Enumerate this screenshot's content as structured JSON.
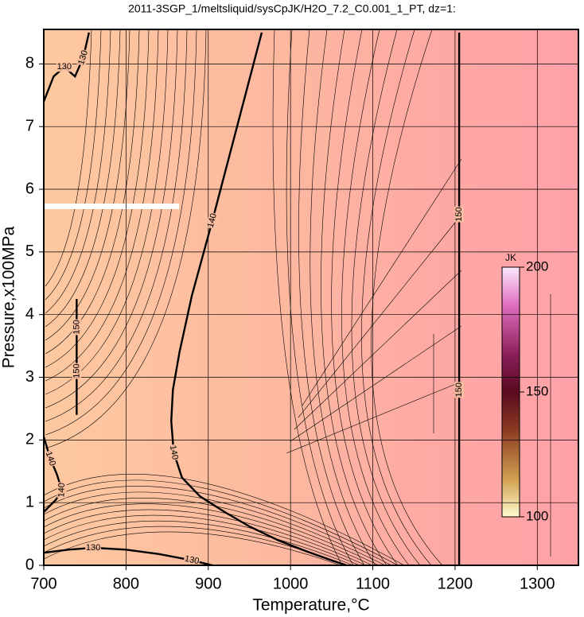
{
  "chart_data": {
    "type": "contour",
    "title": "2011-3SGP_1/meltsliquid/sysCpJK/H2O_7.2_C0.001_1_PT, dz=1:",
    "xlabel": "Temperature,°C",
    "ylabel": "Pressure,x100MPa",
    "xlim": [
      700,
      1350
    ],
    "ylim": [
      0,
      8.55
    ],
    "xticks": [
      700,
      800,
      900,
      1000,
      1100,
      1200,
      1300
    ],
    "yticks": [
      0,
      1,
      2,
      3,
      4,
      5,
      6,
      7,
      8
    ],
    "grid": true,
    "contours": [
      {
        "level": 140,
        "x": [
          965,
          935,
          905,
          880,
          865,
          857,
          855,
          858,
          868,
          890,
          920,
          950,
          985,
          1020,
          1050,
          1068
        ],
        "y": [
          8.5,
          7,
          5.5,
          4.3,
          3.4,
          2.8,
          2.3,
          1.8,
          1.4,
          1.1,
          0.85,
          0.62,
          0.4,
          0.22,
          0.08,
          0
        ]
      },
      {
        "level": 150,
        "x": [
          1205,
          1205,
          1205,
          1205
        ],
        "y": [
          0,
          2.8,
          5.6,
          8.5
        ]
      },
      {
        "level": 130,
        "x": [
          700,
          712,
          725,
          738,
          748,
          755
        ],
        "y": [
          7.4,
          7.8,
          7.95,
          7.8,
          8.1,
          8.5
        ]
      },
      {
        "level": 130,
        "x": [
          700,
          730,
          760,
          800,
          840,
          880,
          905
        ],
        "y": [
          0.2,
          0.25,
          0.28,
          0.25,
          0.18,
          0.08,
          0
        ]
      },
      {
        "level": 140,
        "x": [
          700,
          708,
          716,
          722,
          715,
          700
        ],
        "y": [
          2.05,
          1.7,
          1.45,
          1.2,
          1.05,
          0.85
        ]
      },
      {
        "level": 150,
        "x": [
          740,
          740,
          740,
          740
        ],
        "y": [
          2.4,
          3.1,
          3.8,
          4.25
        ]
      }
    ],
    "colorbar": {
      "label": "JK",
      "lim": [
        100,
        200
      ],
      "ticks": [
        100,
        150,
        200
      ]
    }
  }
}
